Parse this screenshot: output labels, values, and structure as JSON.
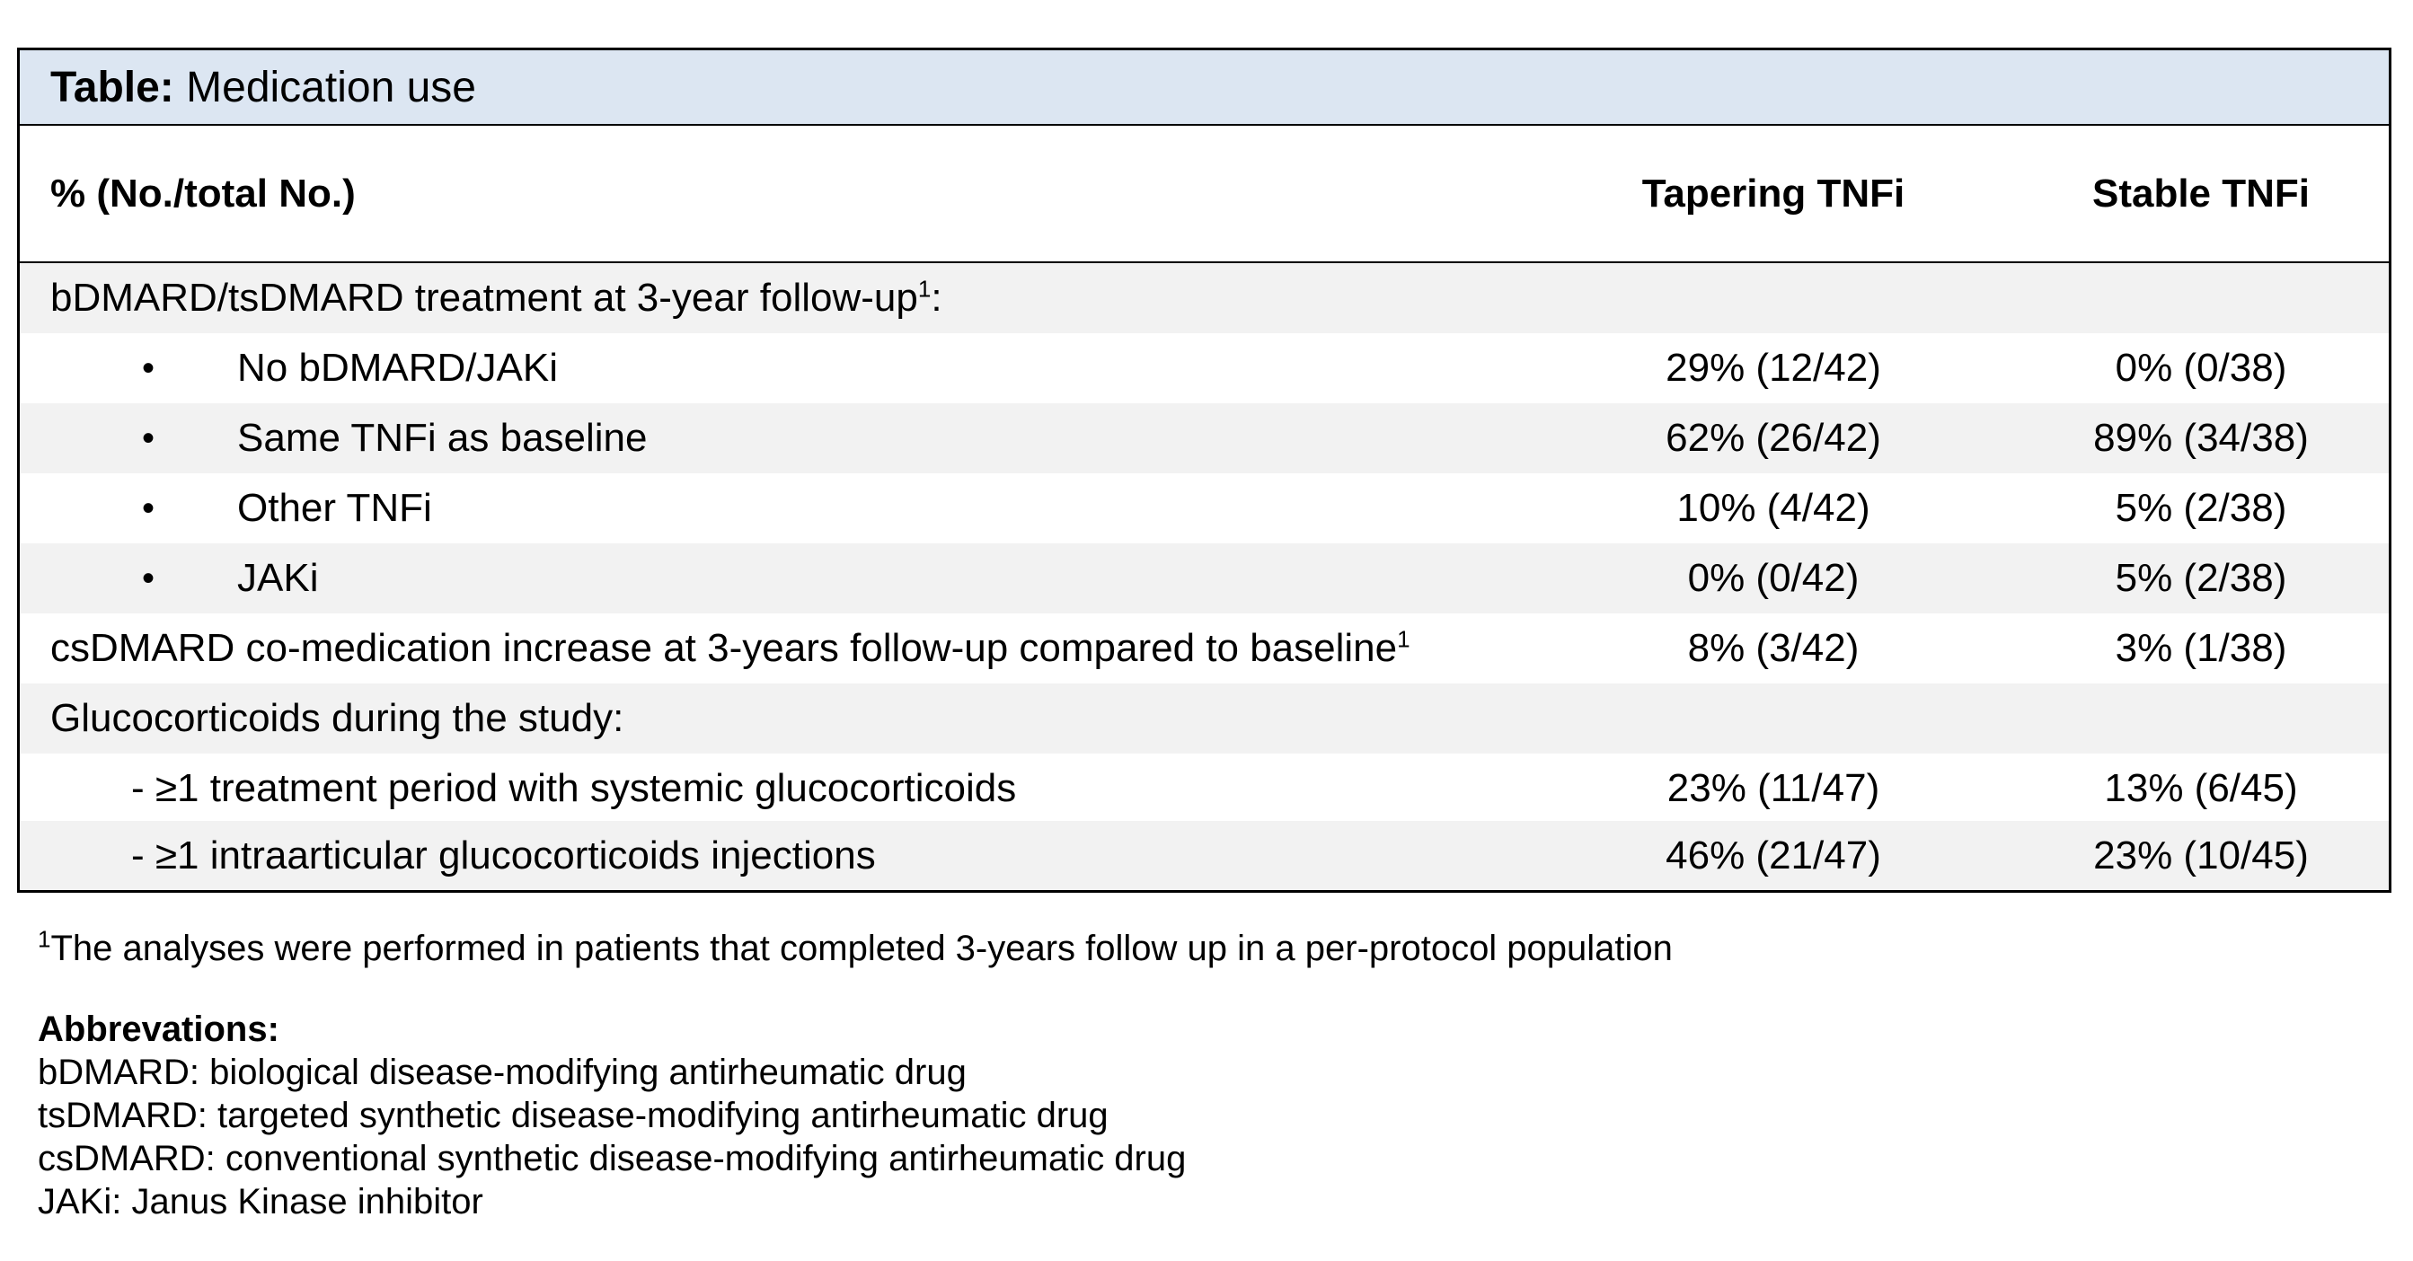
{
  "table": {
    "title_bold": "Table:",
    "title_rest": " Medication use",
    "headers": {
      "label": "% (No./total No.)",
      "col1": "Tapering TNFi",
      "col2": "Stable TNFi"
    },
    "section1": {
      "label": "bDMARD/tsDMARD treatment at 3-year follow-up",
      "sup": "1",
      "suffix": ":"
    },
    "bullet_symbol": "•",
    "bullet_rows": [
      {
        "label": "No bDMARD/JAKi",
        "v1": "29% (12/42)",
        "v2": "0% (0/38)"
      },
      {
        "label": "Same TNFi as baseline",
        "v1": "62% (26/42)",
        "v2": "89% (34/38)"
      },
      {
        "label": "Other TNFi",
        "v1": "10% (4/42)",
        "v2": "5% (2/38)"
      },
      {
        "label": "JAKi",
        "v1": "0% (0/42)",
        "v2": "5% (2/38)"
      }
    ],
    "csdmard_row": {
      "label": "csDMARD co-medication increase at 3-years follow-up compared to baseline",
      "sup": "1",
      "v1": "8% (3/42)",
      "v2": "3% (1/38)"
    },
    "section2": {
      "label": "Glucocorticoids during the study:"
    },
    "dash_rows": [
      {
        "label": "- ≥1 treatment period with systemic glucocorticoids",
        "v1": "23% (11/47)",
        "v2": "13% (6/45)"
      },
      {
        "label": "- ≥1 intraarticular glucocorticoids injections",
        "v1": "46% (21/47)",
        "v2": "23% (10/45)"
      }
    ]
  },
  "footnote": {
    "sup": "1",
    "text": "The analyses were performed in patients that completed 3-years follow up in a per-protocol population"
  },
  "abbreviations": {
    "title": "Abbrevations:",
    "items": [
      "bDMARD: biological disease-modifying antirheumatic drug",
      "tsDMARD: targeted synthetic disease-modifying antirheumatic drug",
      "csDMARD: conventional synthetic disease-modifying antirheumatic drug",
      "JAKi: Janus Kinase inhibitor"
    ]
  },
  "colors": {
    "title_bg": "#dce6f2",
    "row_shade": "#f2f2f2"
  }
}
